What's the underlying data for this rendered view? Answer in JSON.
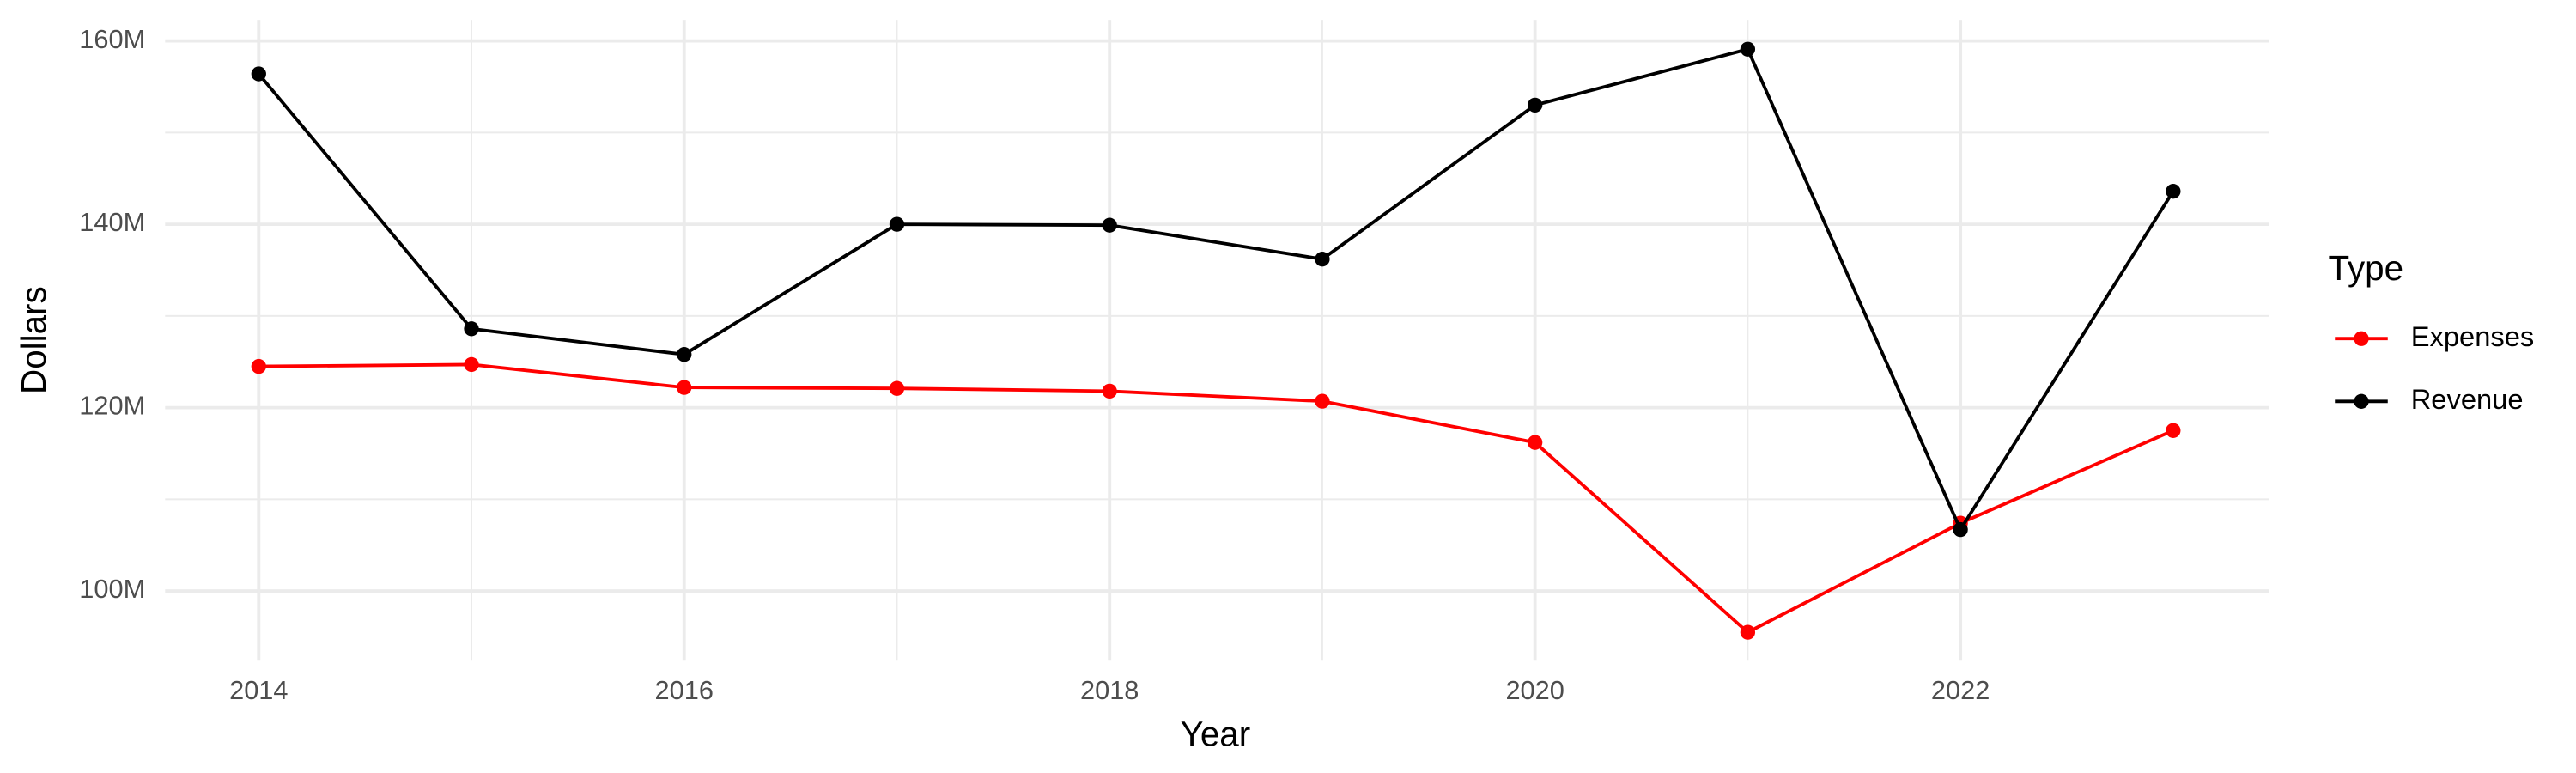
{
  "chart_data": {
    "type": "line",
    "x_label": "Year",
    "y_label": "Dollars",
    "legend_title": "Type",
    "legend_position": "right",
    "grid": true,
    "x": [
      2014,
      2015,
      2016,
      2017,
      2018,
      2019,
      2020,
      2021,
      2022,
      2023
    ],
    "series": [
      {
        "name": "Expenses",
        "color": "#ff0000",
        "values": [
          124500000,
          124700000,
          122200000,
          122100000,
          121800000,
          120700000,
          116200000,
          95500000,
          107400000,
          117500000
        ]
      },
      {
        "name": "Revenue",
        "color": "#000000",
        "values": [
          156400000,
          128600000,
          125800000,
          140000000,
          139900000,
          136200000,
          153000000,
          159100000,
          106700000,
          143600000
        ]
      }
    ],
    "xlim": [
      2013.56,
      2023.45
    ],
    "xticks": [
      2014,
      2016,
      2018,
      2020,
      2022
    ],
    "ylim": [
      92400000,
      162300000
    ],
    "yticks": [
      {
        "value": 100000000,
        "label": "100M"
      },
      {
        "value": 120000000,
        "label": "120M"
      },
      {
        "value": 140000000,
        "label": "140M"
      },
      {
        "value": 160000000,
        "label": "160M"
      }
    ]
  }
}
